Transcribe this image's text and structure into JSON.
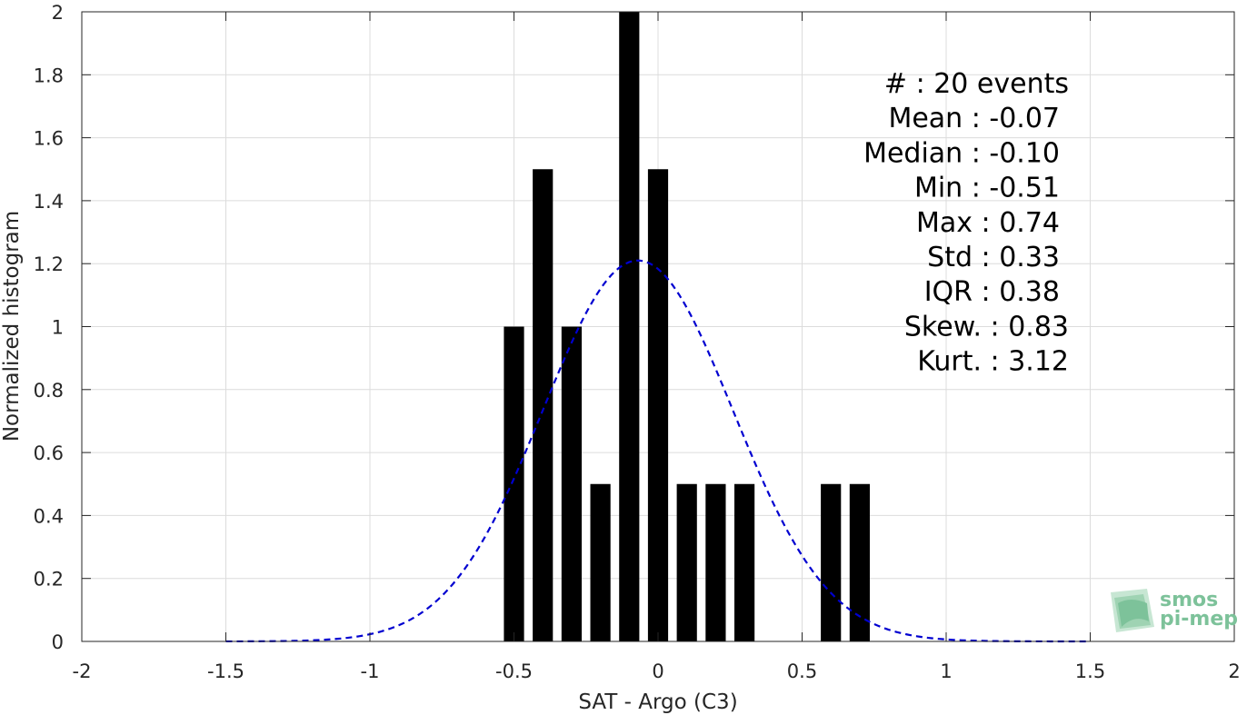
{
  "chart_data": {
    "type": "bar",
    "xlabel": "SAT - Argo (C3)",
    "ylabel": "Normalized histogram",
    "xlim": [
      -2,
      2
    ],
    "ylim": [
      0,
      2
    ],
    "xticks": [
      -2,
      -1.5,
      -1,
      -0.5,
      0,
      0.5,
      1,
      1.5,
      2
    ],
    "xtick_labels": [
      "-2",
      "-1.5",
      "-1",
      "-0.5",
      "0",
      "0.5",
      "1",
      "1.5",
      "2"
    ],
    "yticks": [
      0,
      0.2,
      0.4,
      0.6,
      0.8,
      1,
      1.2,
      1.4,
      1.6,
      1.8,
      2
    ],
    "ytick_labels": [
      "0",
      "0.2",
      "0.4",
      "0.6",
      "0.8",
      "1",
      "1.2",
      "1.4",
      "1.6",
      "1.8",
      "2"
    ],
    "grid": true,
    "bar_color": "#000000",
    "bar_width": 0.07,
    "bars": [
      {
        "x": -0.5,
        "value": 1.0
      },
      {
        "x": -0.4,
        "value": 1.5
      },
      {
        "x": -0.3,
        "value": 1.0
      },
      {
        "x": -0.2,
        "value": 0.5
      },
      {
        "x": -0.1,
        "value": 2.0
      },
      {
        "x": 0.0,
        "value": 1.5
      },
      {
        "x": 0.1,
        "value": 0.5
      },
      {
        "x": 0.2,
        "value": 0.5
      },
      {
        "x": 0.3,
        "value": 0.5
      },
      {
        "x": 0.6,
        "value": 0.5
      },
      {
        "x": 0.7,
        "value": 0.5
      }
    ],
    "fit_curve": {
      "style": "dashed",
      "color": "#0000d0",
      "mean": -0.07,
      "std": 0.33,
      "x_range": [
        -1.5,
        1.5
      ]
    },
    "annotations": [
      "#  : 20 events",
      "Mean : -0.07",
      "Median : -0.10",
      "Min : -0.51",
      "Max : 0.74",
      "Std : 0.33",
      "IQR : 0.38",
      "Skew. : 0.83",
      "Kurt. : 3.12"
    ]
  },
  "logo": {
    "line1": "smos",
    "line2": "pi-mep",
    "color": "#7dc29a"
  }
}
